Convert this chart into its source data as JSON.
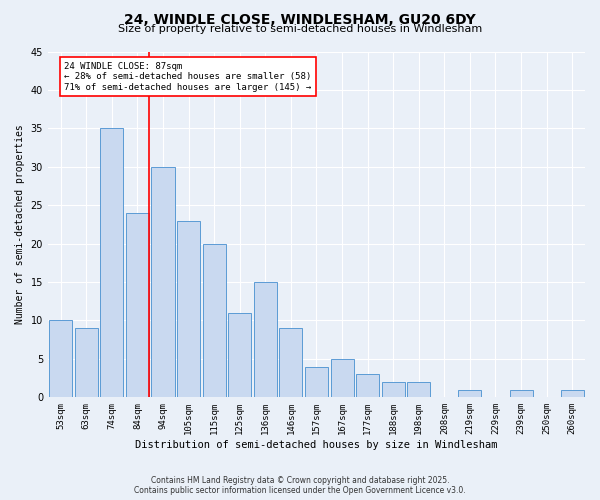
{
  "title": "24, WINDLE CLOSE, WINDLESHAM, GU20 6DY",
  "subtitle": "Size of property relative to semi-detached houses in Windlesham",
  "xlabel": "Distribution of semi-detached houses by size in Windlesham",
  "ylabel": "Number of semi-detached properties",
  "bins": [
    "53sqm",
    "63sqm",
    "74sqm",
    "84sqm",
    "94sqm",
    "105sqm",
    "115sqm",
    "125sqm",
    "136sqm",
    "146sqm",
    "157sqm",
    "167sqm",
    "177sqm",
    "188sqm",
    "198sqm",
    "208sqm",
    "219sqm",
    "229sqm",
    "239sqm",
    "250sqm",
    "260sqm"
  ],
  "values": [
    10,
    9,
    35,
    24,
    30,
    23,
    20,
    11,
    15,
    9,
    4,
    5,
    3,
    2,
    2,
    0,
    1,
    0,
    1,
    0,
    1
  ],
  "bar_color": "#c9d9f0",
  "bar_edge_color": "#5b9bd5",
  "annotation_text": "24 WINDLE CLOSE: 87sqm\n← 28% of semi-detached houses are smaller (58)\n71% of semi-detached houses are larger (145) →",
  "ylim": [
    0,
    45
  ],
  "yticks": [
    0,
    5,
    10,
    15,
    20,
    25,
    30,
    35,
    40,
    45
  ],
  "footer1": "Contains HM Land Registry data © Crown copyright and database right 2025.",
  "footer2": "Contains public sector information licensed under the Open Government Licence v3.0.",
  "bg_color": "#eaf0f8",
  "plot_bg_color": "#eaf0f8"
}
